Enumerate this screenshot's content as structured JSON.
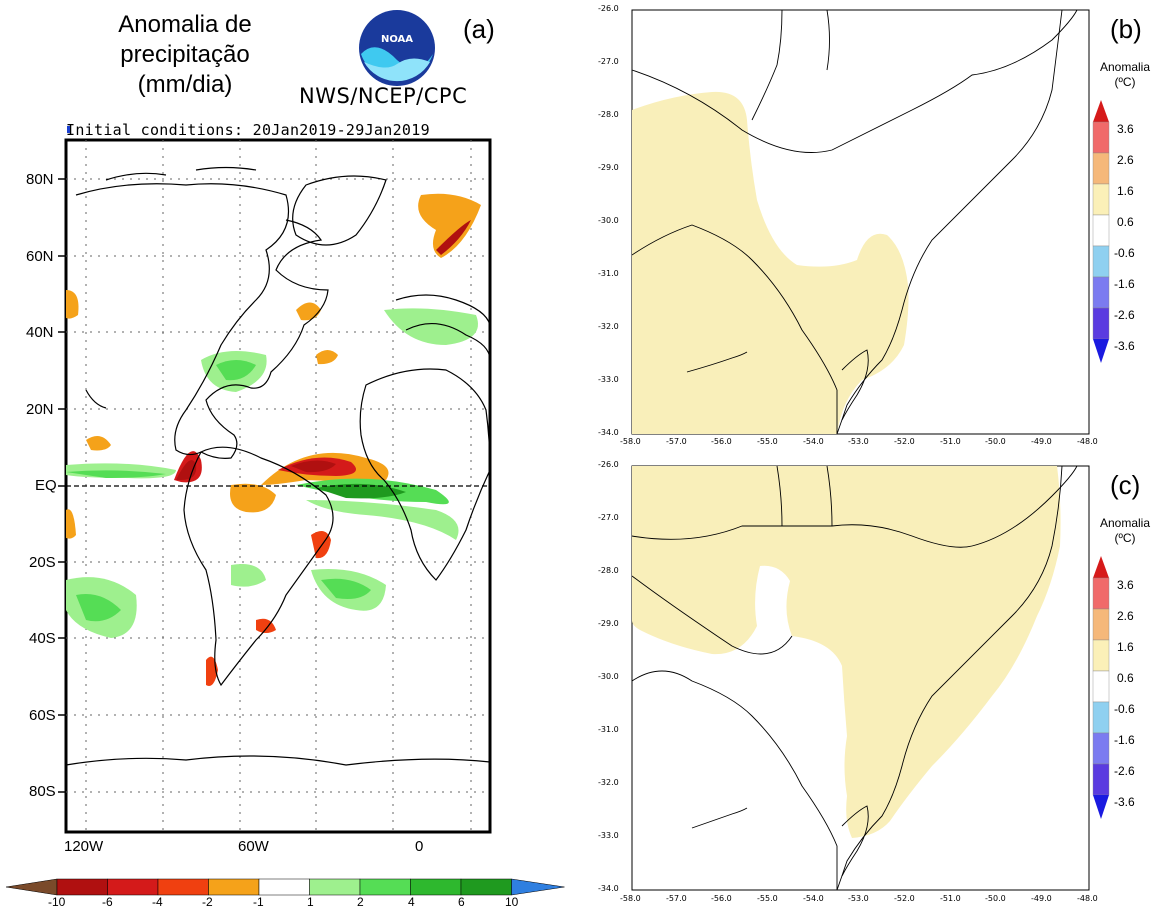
{
  "panel_a": {
    "title_lines": [
      "Anomalia de",
      "precipitação",
      "(mm/dia)"
    ],
    "letter": "(a)",
    "logo_text": "NOAA",
    "agency": "NWS/NCEP/CPC",
    "initial_conditions": "Initial conditions: 20Jan2019-29Jan2019",
    "lat_labels": [
      "80N",
      "60N",
      "40N",
      "20N",
      "EQ",
      "20S",
      "40S",
      "60S",
      "80S"
    ],
    "lon_labels": [
      "120W",
      "60W",
      "0"
    ],
    "colorbar": {
      "ticks": [
        "-10",
        "-6",
        "-4",
        "-2",
        "-1",
        "1",
        "2",
        "4",
        "6",
        "10"
      ],
      "colors": [
        "#7a4a2a",
        "#b01010",
        "#d41a1a",
        "#f04010",
        "#f5a21a",
        "#ffffff",
        "#9ef08e",
        "#55dd55",
        "#2eb82e",
        "#1f9a1f",
        "#2f7fe0"
      ]
    }
  },
  "panel_b": {
    "letter": "(b)",
    "lat_ticks": [
      "-26.0",
      "-27.0",
      "-28.0",
      "-29.0",
      "-30.0",
      "-31.0",
      "-32.0",
      "-33.0",
      "-34.0"
    ],
    "lon_ticks": [
      "-58.0",
      "-57.0",
      "-56.0",
      "-55.0",
      "-54.0",
      "-53.0",
      "-52.0",
      "-51.0",
      "-50.0",
      "-49.0",
      "-48.0"
    ],
    "legend_title": [
      "Anomalia",
      "(ºC)"
    ],
    "legend_ticks": [
      "3.6",
      "2.6",
      "1.6",
      "0.6",
      "-0.6",
      "-1.6",
      "-2.6",
      "-3.6"
    ]
  },
  "panel_c": {
    "letter": "(c)",
    "lat_ticks": [
      "-26.0",
      "-27.0",
      "-28.0",
      "-29.0",
      "-30.0",
      "-31.0",
      "-32.0",
      "-33.0",
      "-34.0"
    ],
    "lon_ticks": [
      "-58.0",
      "-57.0",
      "-56.0",
      "-55.0",
      "-54.0",
      "-53.0",
      "-52.0",
      "-51.0",
      "-50.0",
      "-49.0",
      "-48.0"
    ],
    "legend_title": [
      "Anomalia",
      "(ºC)"
    ],
    "legend_ticks": [
      "3.6",
      "2.6",
      "1.6",
      "0.6",
      "-0.6",
      "-1.6",
      "-2.6",
      "-3.6"
    ]
  },
  "temp_colorbar_colors": [
    "#d61a1a",
    "#f06a6a",
    "#f5b87a",
    "#fbf0b8",
    "#ffffff",
    "#8fd0f0",
    "#7b7bf0",
    "#5a3be0",
    "#1a1ae0"
  ],
  "anomaly_fill_color": "#f9efba"
}
